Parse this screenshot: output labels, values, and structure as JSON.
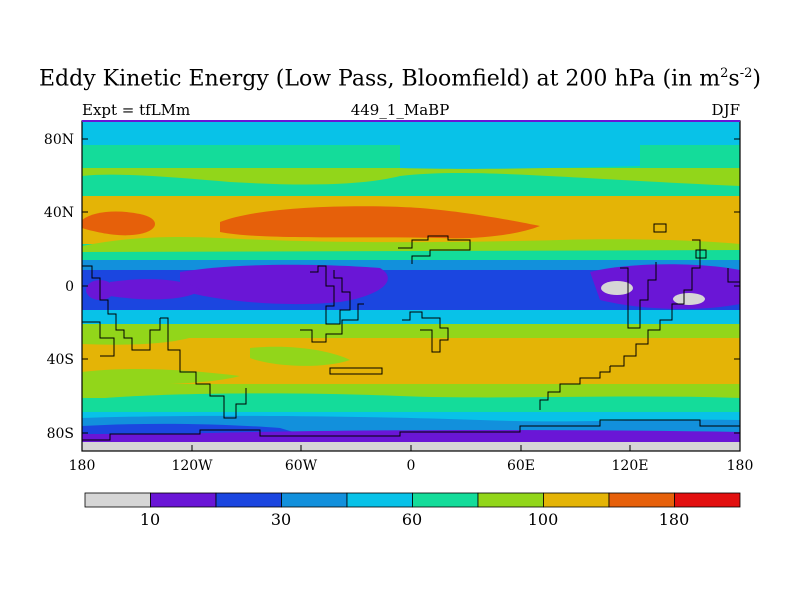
{
  "figure": {
    "title": "Eddy Kinetic Energy (Low Pass, Bloomfield) at 200 hPa (in m",
    "title_sup1": "2",
    "title_mid": "s",
    "title_sup2": "-2",
    "title_end": ")",
    "left_label": "Expt = tfLMm",
    "center_label": "449_1_MaBP",
    "right_label": "DJF"
  },
  "chart_data": {
    "type": "heatmap",
    "variable": "Eddy Kinetic Energy (Low Pass, Bloomfield) at 200 hPa",
    "units": "m2 s-2",
    "season": "DJF",
    "experiment": "tfLMm",
    "x_ticks": [
      "180",
      "120W",
      "60W",
      "0",
      "60E",
      "120E",
      "180"
    ],
    "y_ticks": [
      "80N",
      "40N",
      "0",
      "40S",
      "80S"
    ],
    "xlim": [
      -180,
      180
    ],
    "ylim": [
      -90,
      90
    ],
    "colorbar": {
      "levels": [
        10,
        20,
        30,
        45,
        60,
        80,
        100,
        140,
        180
      ],
      "labels": [
        "10",
        "30",
        "60",
        "100",
        "180"
      ],
      "colors": [
        "#d6d6d6",
        "#6a16d6",
        "#1b46e0",
        "#1290dc",
        "#08c2e8",
        "#14dc9a",
        "#92d61a",
        "#e4b406",
        "#e6600a",
        "#e20f0f"
      ]
    },
    "zonal_bands": [
      {
        "lat_range": [
          78,
          90
        ],
        "value_class": 4,
        "desc": "cyan polar cap"
      },
      {
        "lat_range": [
          28,
          45
        ],
        "value_class": 8,
        "desc": "NH jet maximum (orange)"
      },
      {
        "lat_range": [
          -10,
          10
        ],
        "value_class": 1,
        "desc": "tropical minimum (purple)"
      },
      {
        "lat_range": [
          -45,
          -28
        ],
        "value_class": 7,
        "desc": "SH storm track (yellow)"
      },
      {
        "lat_range": [
          -90,
          -82
        ],
        "value_class": 0,
        "desc": "Antarctic minimum (grey)"
      }
    ]
  }
}
